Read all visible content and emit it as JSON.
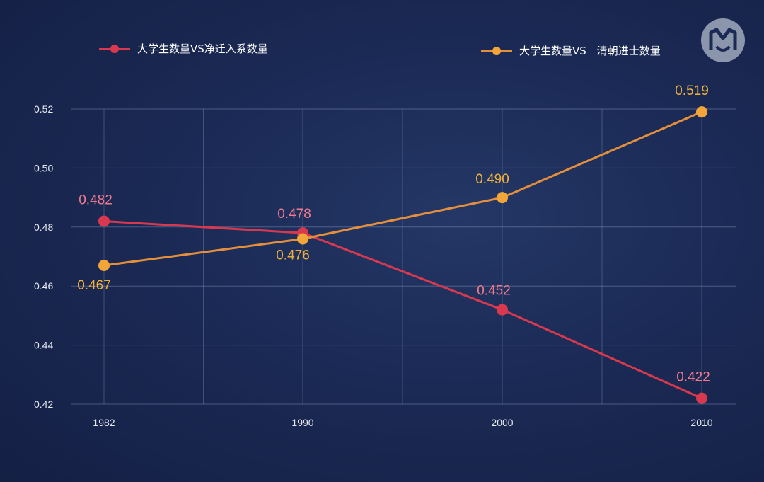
{
  "chart_data": {
    "type": "line",
    "x": [
      "1982",
      "1990",
      "2000",
      "2010"
    ],
    "series": [
      {
        "name": "大学生数量VS净迁入系数量",
        "values": [
          0.482,
          0.478,
          0.452,
          0.422
        ],
        "labels": [
          "0.482",
          "0.478",
          "0.452",
          "0.422"
        ],
        "color": "#d8394f",
        "label_color": "#f27a8e"
      },
      {
        "name": "大学生数量VS　清朝进士数量",
        "values": [
          0.467,
          0.476,
          0.49,
          0.519
        ],
        "labels": [
          "0.467",
          "0.476",
          "0.490",
          "0.519"
        ],
        "color": "#e58f3c",
        "label_color": "#f2b23a"
      }
    ],
    "ylim": [
      0.42,
      0.52
    ],
    "yticks": [
      "0.42",
      "0.44",
      "0.46",
      "0.48",
      "0.50",
      "0.52"
    ],
    "grid": true,
    "legend_placement": "top",
    "title": "",
    "xlabel": "",
    "ylabel": ""
  },
  "background_color": "#1b2a55",
  "logo_icon": "mg-logo-icon"
}
